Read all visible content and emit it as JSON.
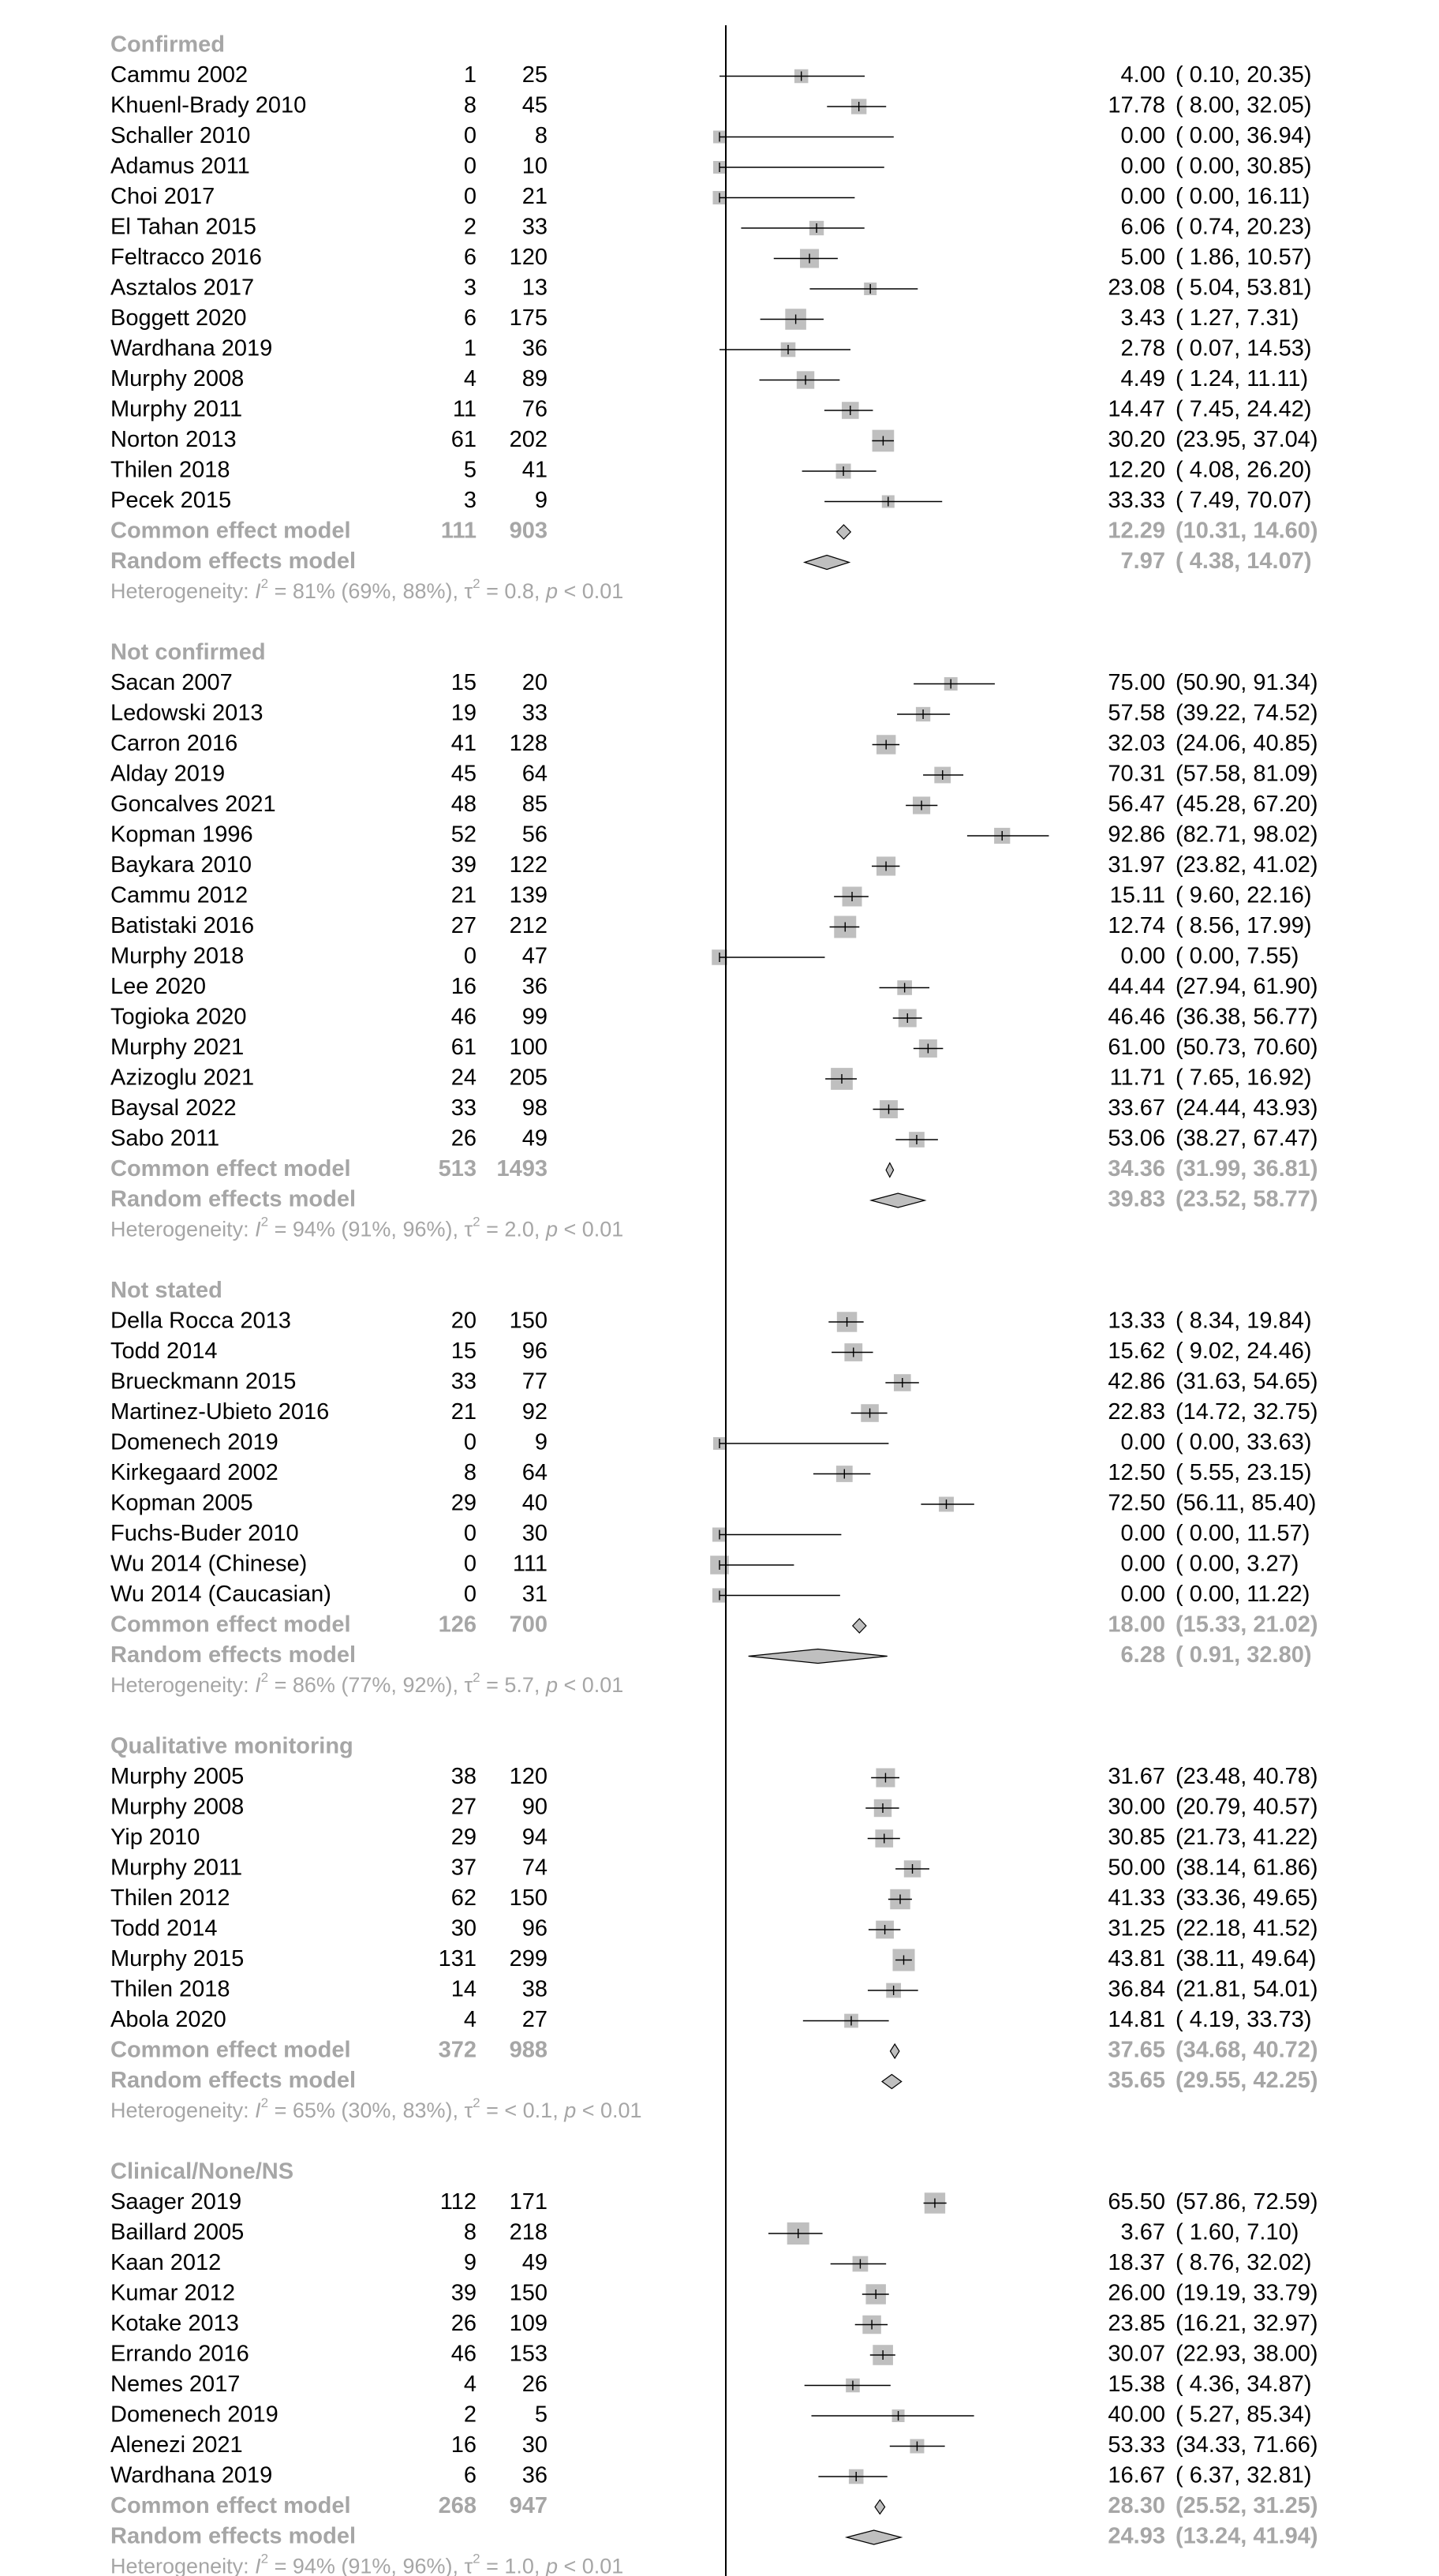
{
  "colors": {
    "text": "#000000",
    "summary_text": "#a6a6a6",
    "box_fill": "#bfbfbf",
    "diamond_fill": "#bfbfbf",
    "line": "#000000"
  },
  "chart_data": {
    "type": "forest",
    "x_scale": "logit",
    "x_reference": 0,
    "subgroups": [
      {
        "label": "Confirmed",
        "studies": [
          {
            "study": "Cammu 2002",
            "events": "1",
            "total": "25",
            "est": "4.00",
            "ci": "( 0.10, 20.35)",
            "value": 4.0,
            "lo": 0.1,
            "hi": 20.35
          },
          {
            "study": "Khuenl-Brady 2010",
            "events": "8",
            "total": "45",
            "est": "17.78",
            "ci": "( 8.00, 32.05)",
            "value": 17.78,
            "lo": 8.0,
            "hi": 32.05
          },
          {
            "study": "Schaller 2010",
            "events": "0",
            "total": "8",
            "est": "0.00",
            "ci": "( 0.00, 36.94)",
            "value": 0.0,
            "lo": 0.0,
            "hi": 36.94
          },
          {
            "study": "Adamus 2011",
            "events": "0",
            "total": "10",
            "est": "0.00",
            "ci": "( 0.00, 30.85)",
            "value": 0.0,
            "lo": 0.0,
            "hi": 30.85
          },
          {
            "study": "Choi 2017",
            "events": "0",
            "total": "21",
            "est": "0.00",
            "ci": "( 0.00, 16.11)",
            "value": 0.0,
            "lo": 0.0,
            "hi": 16.11
          },
          {
            "study": "El Tahan 2015",
            "events": "2",
            "total": "33",
            "est": "6.06",
            "ci": "( 0.74, 20.23)",
            "value": 6.06,
            "lo": 0.74,
            "hi": 20.23
          },
          {
            "study": "Feltracco 2016",
            "events": "6",
            "total": "120",
            "est": "5.00",
            "ci": "( 1.86, 10.57)",
            "value": 5.0,
            "lo": 1.86,
            "hi": 10.57
          },
          {
            "study": "Asztalos 2017",
            "events": "3",
            "total": "13",
            "est": "23.08",
            "ci": "( 5.04, 53.81)",
            "value": 23.08,
            "lo": 5.04,
            "hi": 53.81
          },
          {
            "study": "Boggett 2020",
            "events": "6",
            "total": "175",
            "est": "3.43",
            "ci": "( 1.27, 7.31)",
            "value": 3.43,
            "lo": 1.27,
            "hi": 7.31
          },
          {
            "study": "Wardhana 2019",
            "events": "1",
            "total": "36",
            "est": "2.78",
            "ci": "( 0.07, 14.53)",
            "value": 2.78,
            "lo": 0.07,
            "hi": 14.53
          },
          {
            "study": "Murphy 2008",
            "events": "4",
            "total": "89",
            "est": "4.49",
            "ci": "( 1.24, 11.11)",
            "value": 4.49,
            "lo": 1.24,
            "hi": 11.11
          },
          {
            "study": "Murphy 2011",
            "events": "11",
            "total": "76",
            "est": "14.47",
            "ci": "( 7.45, 24.42)",
            "value": 14.47,
            "lo": 7.45,
            "hi": 24.42
          },
          {
            "study": "Norton 2013",
            "events": "61",
            "total": "202",
            "est": "30.20",
            "ci": "(23.95, 37.04)",
            "value": 30.2,
            "lo": 23.95,
            "hi": 37.04
          },
          {
            "study": "Thilen 2018",
            "events": "5",
            "total": "41",
            "est": "12.20",
            "ci": "( 4.08, 26.20)",
            "value": 12.2,
            "lo": 4.08,
            "hi": 26.2
          },
          {
            "study": "Pecek 2015",
            "events": "3",
            "total": "9",
            "est": "33.33",
            "ci": "( 7.49, 70.07)",
            "value": 33.33,
            "lo": 7.49,
            "hi": 70.07
          }
        ],
        "common": {
          "label": "Common effect model",
          "events": "111",
          "total": "903",
          "est": "12.29",
          "ci": "(10.31, 14.60)",
          "value": 12.29,
          "lo": 10.31,
          "hi": 14.6
        },
        "random": {
          "label": "Random effects model",
          "est": "7.97",
          "ci": "( 4.38, 14.07)",
          "value": 7.97,
          "lo": 4.38,
          "hi": 14.07
        },
        "heterogeneity": {
          "prefix": "Heterogeneity: ",
          "i2_symbol": "I",
          "i2_value": " = 81% (69%, 88%), ",
          "tau_symbol": "τ",
          "tau_value": " = 0.8, ",
          "p_symbol": "p",
          "p_value": " < 0.01"
        }
      },
      {
        "label": "Not confirmed",
        "studies": [
          {
            "study": "Sacan 2007",
            "events": "15",
            "total": "20",
            "est": "75.00",
            "ci": "(50.90, 91.34)",
            "value": 75.0,
            "lo": 50.9,
            "hi": 91.34
          },
          {
            "study": "Ledowski 2013",
            "events": "19",
            "total": "33",
            "est": "57.58",
            "ci": "(39.22, 74.52)",
            "value": 57.58,
            "lo": 39.22,
            "hi": 74.52
          },
          {
            "study": "Carron 2016",
            "events": "41",
            "total": "128",
            "est": "32.03",
            "ci": "(24.06, 40.85)",
            "value": 32.03,
            "lo": 24.06,
            "hi": 40.85
          },
          {
            "study": "Alday 2019",
            "events": "45",
            "total": "64",
            "est": "70.31",
            "ci": "(57.58, 81.09)",
            "value": 70.31,
            "lo": 57.58,
            "hi": 81.09
          },
          {
            "study": "Goncalves 2021",
            "events": "48",
            "total": "85",
            "est": "56.47",
            "ci": "(45.28, 67.20)",
            "value": 56.47,
            "lo": 45.28,
            "hi": 67.2
          },
          {
            "study": "Kopman 1996",
            "events": "52",
            "total": "56",
            "est": "92.86",
            "ci": "(82.71, 98.02)",
            "value": 92.86,
            "lo": 82.71,
            "hi": 98.02
          },
          {
            "study": "Baykara 2010",
            "events": "39",
            "total": "122",
            "est": "31.97",
            "ci": "(23.82, 41.02)",
            "value": 31.97,
            "lo": 23.82,
            "hi": 41.02
          },
          {
            "study": "Cammu 2012",
            "events": "21",
            "total": "139",
            "est": "15.11",
            "ci": "( 9.60, 22.16)",
            "value": 15.11,
            "lo": 9.6,
            "hi": 22.16
          },
          {
            "study": "Batistaki 2016",
            "events": "27",
            "total": "212",
            "est": "12.74",
            "ci": "( 8.56, 17.99)",
            "value": 12.74,
            "lo": 8.56,
            "hi": 17.99
          },
          {
            "study": "Murphy 2018",
            "events": "0",
            "total": "47",
            "est": "0.00",
            "ci": "( 0.00, 7.55)",
            "value": 0.0,
            "lo": 0.0,
            "hi": 7.55
          },
          {
            "study": "Lee 2020",
            "events": "16",
            "total": "36",
            "est": "44.44",
            "ci": "(27.94, 61.90)",
            "value": 44.44,
            "lo": 27.94,
            "hi": 61.9
          },
          {
            "study": "Togioka 2020",
            "events": "46",
            "total": "99",
            "est": "46.46",
            "ci": "(36.38, 56.77)",
            "value": 46.46,
            "lo": 36.38,
            "hi": 56.77
          },
          {
            "study": "Murphy 2021",
            "events": "61",
            "total": "100",
            "est": "61.00",
            "ci": "(50.73, 70.60)",
            "value": 61.0,
            "lo": 50.73,
            "hi": 70.6
          },
          {
            "study": "Azizoglu 2021",
            "events": "24",
            "total": "205",
            "est": "11.71",
            "ci": "( 7.65, 16.92)",
            "value": 11.71,
            "lo": 7.65,
            "hi": 16.92
          },
          {
            "study": "Baysal 2022",
            "events": "33",
            "total": "98",
            "est": "33.67",
            "ci": "(24.44, 43.93)",
            "value": 33.67,
            "lo": 24.44,
            "hi": 43.93
          },
          {
            "study": "Sabo 2011",
            "events": "26",
            "total": "49",
            "est": "53.06",
            "ci": "(38.27, 67.47)",
            "value": 53.06,
            "lo": 38.27,
            "hi": 67.47
          }
        ],
        "common": {
          "label": "Common effect model",
          "events": "513",
          "total": "1493",
          "est": "34.36",
          "ci": "(31.99, 36.81)",
          "value": 34.36,
          "lo": 31.99,
          "hi": 36.81
        },
        "random": {
          "label": "Random effects model",
          "est": "39.83",
          "ci": "(23.52, 58.77)",
          "value": 39.83,
          "lo": 23.52,
          "hi": 58.77
        },
        "heterogeneity": {
          "prefix": "Heterogeneity: ",
          "i2_symbol": "I",
          "i2_value": " = 94% (91%, 96%), ",
          "tau_symbol": "τ",
          "tau_value": " = 2.0, ",
          "p_symbol": "p",
          "p_value": " < 0.01"
        }
      },
      {
        "label": "Not stated",
        "studies": [
          {
            "study": "Della Rocca 2013",
            "events": "20",
            "total": "150",
            "est": "13.33",
            "ci": "( 8.34, 19.84)",
            "value": 13.33,
            "lo": 8.34,
            "hi": 19.84
          },
          {
            "study": "Todd 2014",
            "events": "15",
            "total": "96",
            "est": "15.62",
            "ci": "( 9.02, 24.46)",
            "value": 15.62,
            "lo": 9.02,
            "hi": 24.46
          },
          {
            "study": "Brueckmann 2015",
            "events": "33",
            "total": "77",
            "est": "42.86",
            "ci": "(31.63, 54.65)",
            "value": 42.86,
            "lo": 31.63,
            "hi": 54.65
          },
          {
            "study": "Martinez-Ubieto 2016",
            "events": "21",
            "total": "92",
            "est": "22.83",
            "ci": "(14.72, 32.75)",
            "value": 22.83,
            "lo": 14.72,
            "hi": 32.75
          },
          {
            "study": "Domenech 2019",
            "events": "0",
            "total": "9",
            "est": "0.00",
            "ci": "( 0.00, 33.63)",
            "value": 0.0,
            "lo": 0.0,
            "hi": 33.63
          },
          {
            "study": "Kirkegaard 2002",
            "events": "8",
            "total": "64",
            "est": "12.50",
            "ci": "( 5.55, 23.15)",
            "value": 12.5,
            "lo": 5.55,
            "hi": 23.15
          },
          {
            "study": "Kopman 2005",
            "events": "29",
            "total": "40",
            "est": "72.50",
            "ci": "(56.11, 85.40)",
            "value": 72.5,
            "lo": 56.11,
            "hi": 85.4
          },
          {
            "study": "Fuchs-Buder 2010",
            "events": "0",
            "total": "30",
            "est": "0.00",
            "ci": "( 0.00, 11.57)",
            "value": 0.0,
            "lo": 0.0,
            "hi": 11.57
          },
          {
            "study": "Wu 2014 (Chinese)",
            "events": "0",
            "total": "111",
            "est": "0.00",
            "ci": "( 0.00, 3.27)",
            "value": 0.0,
            "lo": 0.0,
            "hi": 3.27
          },
          {
            "study": "Wu 2014 (Caucasian)",
            "events": "0",
            "total": "31",
            "est": "0.00",
            "ci": "( 0.00, 11.22)",
            "value": 0.0,
            "lo": 0.0,
            "hi": 11.22
          }
        ],
        "common": {
          "label": "Common effect model",
          "events": "126",
          "total": "700",
          "est": "18.00",
          "ci": "(15.33, 21.02)",
          "value": 18.0,
          "lo": 15.33,
          "hi": 21.02
        },
        "random": {
          "label": "Random effects model",
          "est": "6.28",
          "ci": "( 0.91, 32.80)",
          "value": 6.28,
          "lo": 0.91,
          "hi": 32.8
        },
        "heterogeneity": {
          "prefix": "Heterogeneity: ",
          "i2_symbol": "I",
          "i2_value": " = 86% (77%, 92%), ",
          "tau_symbol": "τ",
          "tau_value": " = 5.7, ",
          "p_symbol": "p",
          "p_value": " < 0.01"
        }
      },
      {
        "label": "Qualitative monitoring",
        "studies": [
          {
            "study": "Murphy 2005",
            "events": "38",
            "total": "120",
            "est": "31.67",
            "ci": "(23.48, 40.78)",
            "value": 31.67,
            "lo": 23.48,
            "hi": 40.78
          },
          {
            "study": "Murphy 2008",
            "events": "27",
            "total": "90",
            "est": "30.00",
            "ci": "(20.79, 40.57)",
            "value": 30.0,
            "lo": 20.79,
            "hi": 40.57
          },
          {
            "study": "Yip 2010",
            "events": "29",
            "total": "94",
            "est": "30.85",
            "ci": "(21.73, 41.22)",
            "value": 30.85,
            "lo": 21.73,
            "hi": 41.22
          },
          {
            "study": "Murphy 2011",
            "events": "37",
            "total": "74",
            "est": "50.00",
            "ci": "(38.14, 61.86)",
            "value": 50.0,
            "lo": 38.14,
            "hi": 61.86
          },
          {
            "study": "Thilen 2012",
            "events": "62",
            "total": "150",
            "est": "41.33",
            "ci": "(33.36, 49.65)",
            "value": 41.33,
            "lo": 33.36,
            "hi": 49.65
          },
          {
            "study": "Todd 2014",
            "events": "30",
            "total": "96",
            "est": "31.25",
            "ci": "(22.18, 41.52)",
            "value": 31.25,
            "lo": 22.18,
            "hi": 41.52
          },
          {
            "study": "Murphy 2015",
            "events": "131",
            "total": "299",
            "est": "43.81",
            "ci": "(38.11, 49.64)",
            "value": 43.81,
            "lo": 38.11,
            "hi": 49.64
          },
          {
            "study": "Thilen 2018",
            "events": "14",
            "total": "38",
            "est": "36.84",
            "ci": "(21.81, 54.01)",
            "value": 36.84,
            "lo": 21.81,
            "hi": 54.01
          },
          {
            "study": "Abola 2020",
            "events": "4",
            "total": "27",
            "est": "14.81",
            "ci": "( 4.19, 33.73)",
            "value": 14.81,
            "lo": 4.19,
            "hi": 33.73
          }
        ],
        "common": {
          "label": "Common effect model",
          "events": "372",
          "total": "988",
          "est": "37.65",
          "ci": "(34.68, 40.72)",
          "value": 37.65,
          "lo": 34.68,
          "hi": 40.72
        },
        "random": {
          "label": "Random effects model",
          "est": "35.65",
          "ci": "(29.55, 42.25)",
          "value": 35.65,
          "lo": 29.55,
          "hi": 42.25
        },
        "heterogeneity": {
          "prefix": "Heterogeneity: ",
          "i2_symbol": "I",
          "i2_value": " = 65% (30%, 83%), ",
          "tau_symbol": "τ",
          "tau_value": " = < 0.1, ",
          "p_symbol": "p",
          "p_value": " < 0.01"
        }
      },
      {
        "label": "Clinical/None/NS",
        "studies": [
          {
            "study": "Saager 2019",
            "events": "112",
            "total": "171",
            "est": "65.50",
            "ci": "(57.86, 72.59)",
            "value": 65.5,
            "lo": 57.86,
            "hi": 72.59
          },
          {
            "study": "Baillard 2005",
            "events": "8",
            "total": "218",
            "est": "3.67",
            "ci": "( 1.60, 7.10)",
            "value": 3.67,
            "lo": 1.6,
            "hi": 7.1
          },
          {
            "study": "Kaan 2012",
            "events": "9",
            "total": "49",
            "est": "18.37",
            "ci": "( 8.76, 32.02)",
            "value": 18.37,
            "lo": 8.76,
            "hi": 32.02
          },
          {
            "study": "Kumar 2012",
            "events": "39",
            "total": "150",
            "est": "26.00",
            "ci": "(19.19, 33.79)",
            "value": 26.0,
            "lo": 19.19,
            "hi": 33.79
          },
          {
            "study": "Kotake 2013",
            "events": "26",
            "total": "109",
            "est": "23.85",
            "ci": "(16.21, 32.97)",
            "value": 23.85,
            "lo": 16.21,
            "hi": 32.97
          },
          {
            "study": "Errando 2016",
            "events": "46",
            "total": "153",
            "est": "30.07",
            "ci": "(22.93, 38.00)",
            "value": 30.07,
            "lo": 22.93,
            "hi": 38.0
          },
          {
            "study": "Nemes 2017",
            "events": "4",
            "total": "26",
            "est": "15.38",
            "ci": "( 4.36, 34.87)",
            "value": 15.38,
            "lo": 4.36,
            "hi": 34.87
          },
          {
            "study": "Domenech 2019",
            "events": "2",
            "total": "5",
            "est": "40.00",
            "ci": "( 5.27, 85.34)",
            "value": 40.0,
            "lo": 5.27,
            "hi": 85.34
          },
          {
            "study": "Alenezi 2021",
            "events": "16",
            "total": "30",
            "est": "53.33",
            "ci": "(34.33, 71.66)",
            "value": 53.33,
            "lo": 34.33,
            "hi": 71.66
          },
          {
            "study": "Wardhana 2019",
            "events": "6",
            "total": "36",
            "est": "16.67",
            "ci": "( 6.37, 32.81)",
            "value": 16.67,
            "lo": 6.37,
            "hi": 32.81
          }
        ],
        "common": {
          "label": "Common effect model",
          "events": "268",
          "total": "947",
          "est": "28.30",
          "ci": "(25.52, 31.25)",
          "value": 28.3,
          "lo": 25.52,
          "hi": 31.25
        },
        "random": {
          "label": "Random effects model",
          "est": "24.93",
          "ci": "(13.24, 41.94)",
          "value": 24.93,
          "lo": 13.24,
          "hi": 41.94
        },
        "heterogeneity": {
          "prefix": "Heterogeneity: ",
          "i2_symbol": "I",
          "i2_value": " = 94% (91%, 96%), ",
          "tau_symbol": "τ",
          "tau_value": " = 1.0, ",
          "p_symbol": "p",
          "p_value": " < 0.01"
        }
      }
    ]
  }
}
